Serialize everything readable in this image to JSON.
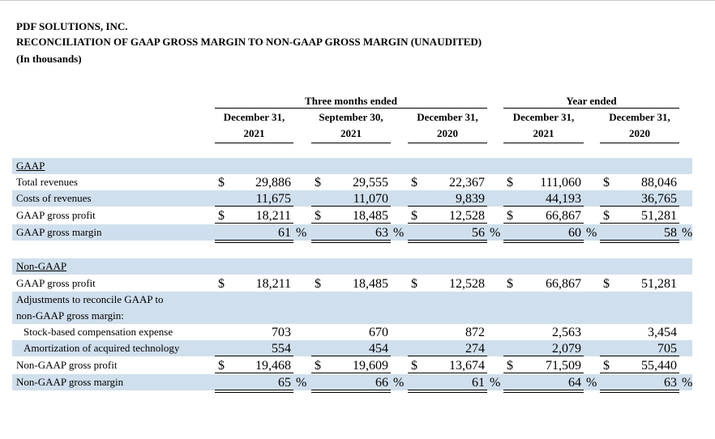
{
  "header": {
    "company": "PDF SOLUTIONS, INC.",
    "title": "RECONCILIATION OF GAAP GROSS MARGIN TO NON-GAAP GROSS MARGIN (UNAUDITED)",
    "units": "(In thousands)"
  },
  "column_groups": [
    {
      "label": "Three months ended"
    },
    {
      "label": "Year ended"
    }
  ],
  "columns": [
    {
      "line1": "December 31,",
      "line2": "2021"
    },
    {
      "line1": "September 30,",
      "line2": "2021"
    },
    {
      "line1": "December 31,",
      "line2": "2020"
    },
    {
      "line1": "December 31,",
      "line2": "2021"
    },
    {
      "line1": "December 31,",
      "line2": "2020"
    }
  ],
  "rows": [
    {
      "label": "GAAP",
      "section": true,
      "dollar": false,
      "pct": false,
      "values": [
        "",
        "",
        "",
        "",
        ""
      ]
    },
    {
      "label": "Total revenues",
      "dollar": true,
      "values": [
        "29,886",
        "29,555",
        "22,367",
        "111,060",
        "88,046"
      ]
    },
    {
      "label": "Costs of revenues",
      "dollar": false,
      "values": [
        "11,675",
        "11,070",
        "9,839",
        "44,193",
        "36,765"
      ]
    },
    {
      "label": "GAAP gross profit",
      "dollar": true,
      "values": [
        "18,211",
        "18,485",
        "12,528",
        "66,867",
        "51,281"
      ]
    },
    {
      "label": "GAAP gross margin",
      "dollar": false,
      "pct": true,
      "values": [
        "61",
        "63",
        "56",
        "60",
        "58"
      ]
    },
    {
      "label": "Non-GAAP",
      "section": true,
      "dollar": false,
      "values": [
        "",
        "",
        "",
        "",
        ""
      ]
    },
    {
      "label": "GAAP gross profit",
      "dollar": true,
      "values": [
        "18,211",
        "18,485",
        "12,528",
        "66,867",
        "51,281"
      ]
    },
    {
      "label": "Adjustments to reconcile GAAP to",
      "dollar": false,
      "values": [
        "",
        "",
        "",
        "",
        ""
      ]
    },
    {
      "label": "non-GAAP gross margin:",
      "dollar": false,
      "values": [
        "",
        "",
        "",
        "",
        ""
      ]
    },
    {
      "label": "Stock-based compensation expense",
      "indent": true,
      "dollar": false,
      "values": [
        "703",
        "670",
        "872",
        "2,563",
        "3,454"
      ]
    },
    {
      "label": "Amortization of acquired technology",
      "indent": true,
      "dollar": false,
      "values": [
        "554",
        "454",
        "274",
        "2,079",
        "705"
      ]
    },
    {
      "label": "Non-GAAP gross profit",
      "dollar": true,
      "values": [
        "19,468",
        "19,609",
        "13,674",
        "71,509",
        "55,440"
      ]
    },
    {
      "label": "Non-GAAP gross margin",
      "dollar": false,
      "pct": true,
      "values": [
        "65",
        "66",
        "61",
        "64",
        "63"
      ]
    }
  ],
  "symbols": {
    "dollar": "$",
    "percent": "%"
  }
}
